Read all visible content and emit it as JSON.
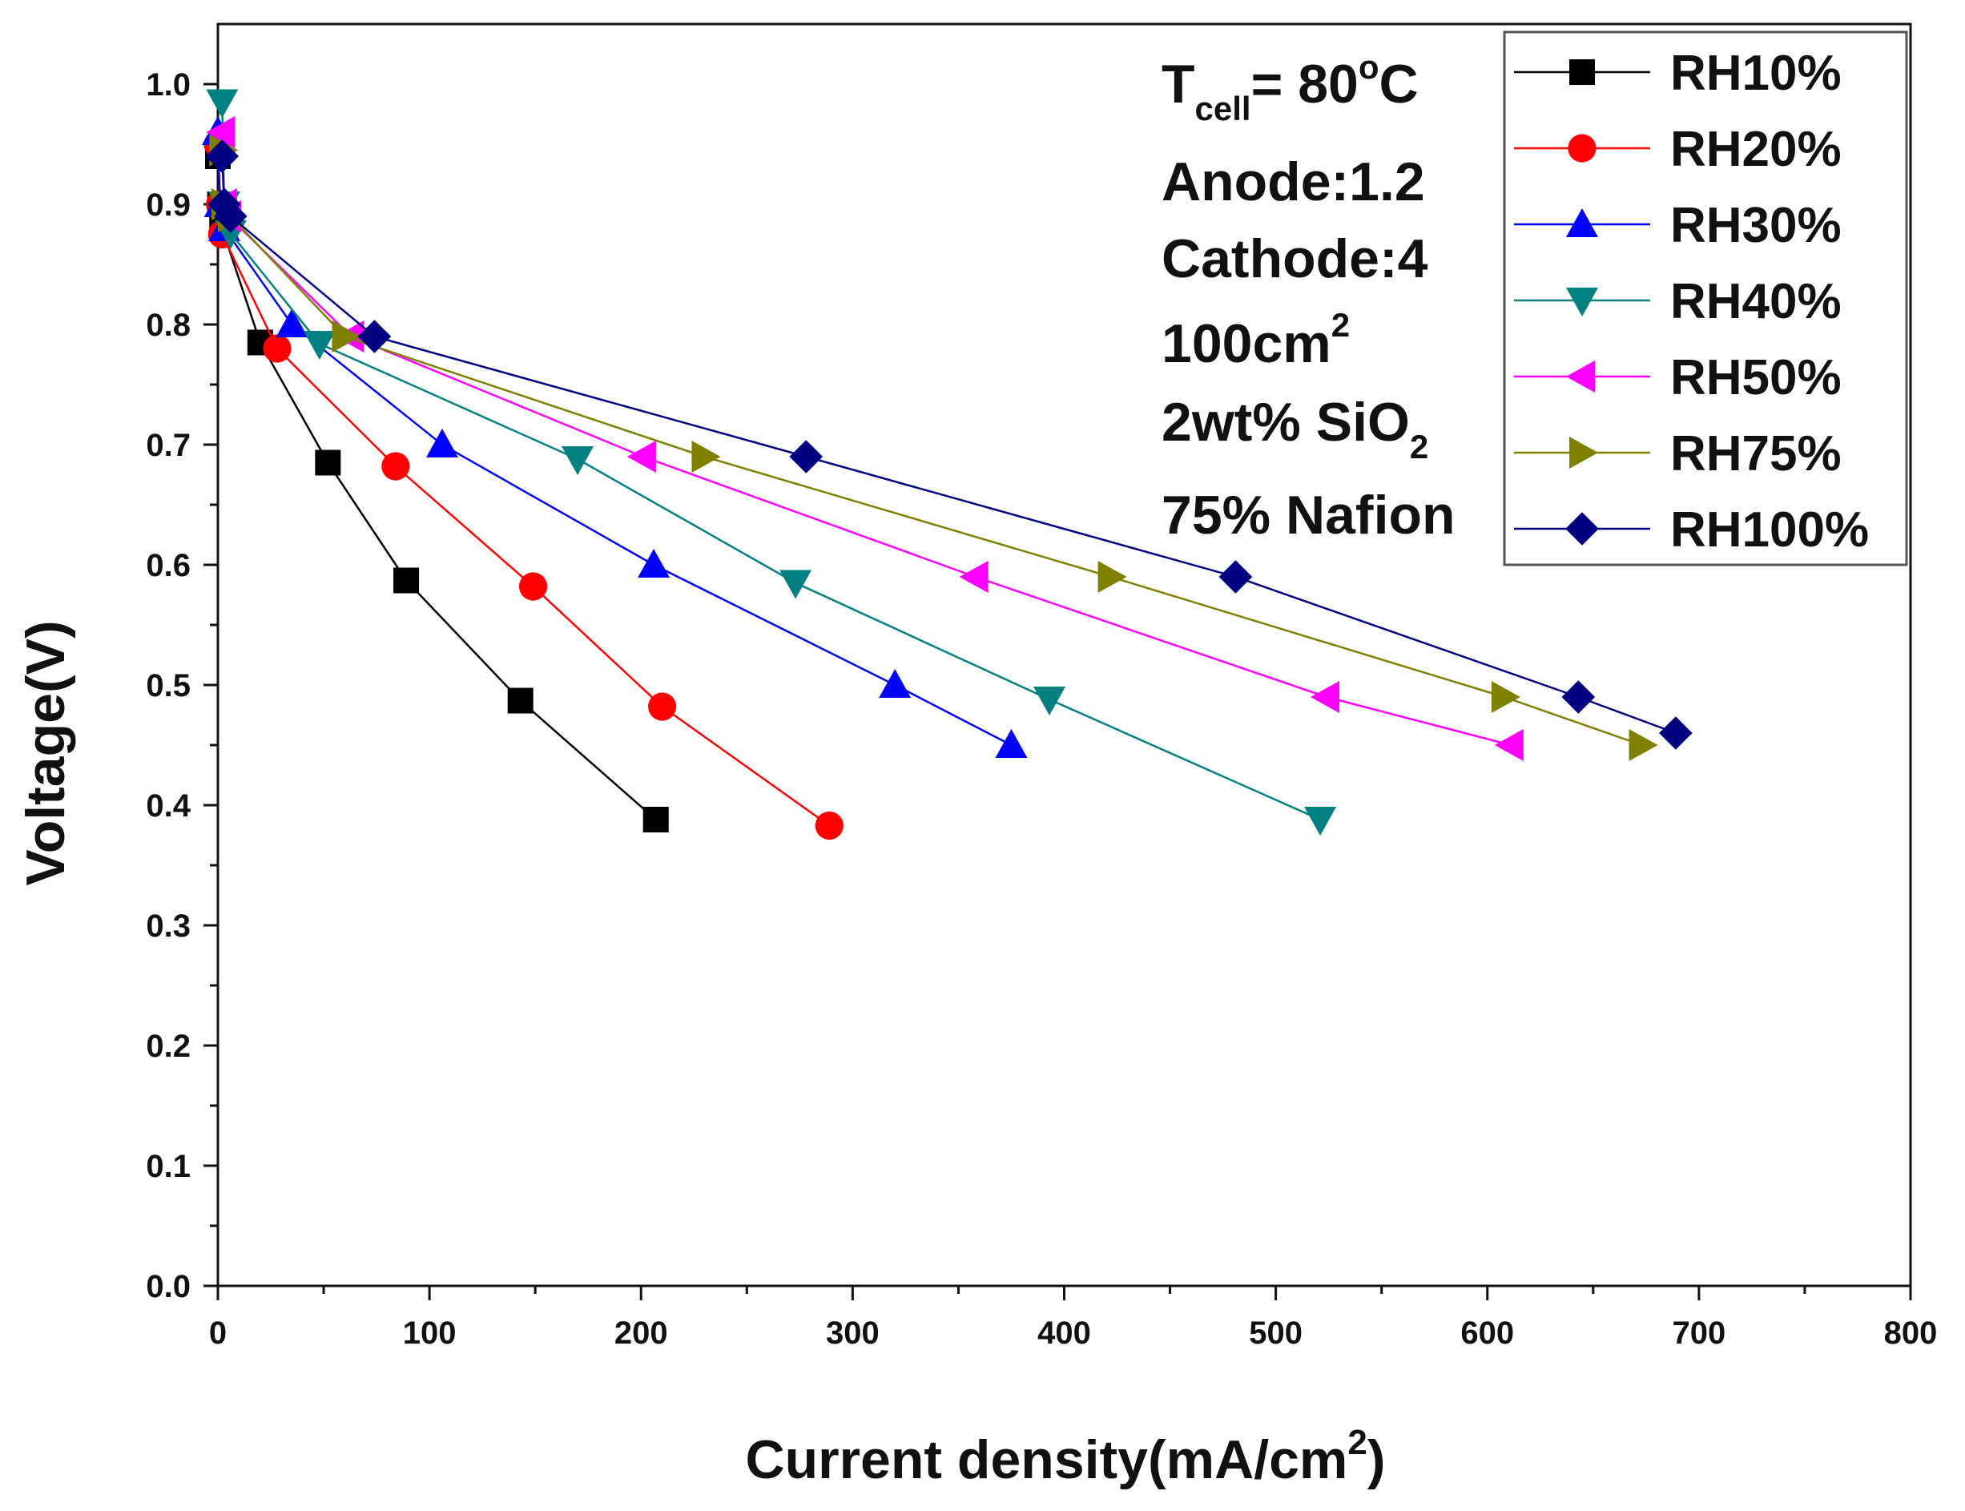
{
  "chart_data": {
    "type": "line",
    "xlabel": "Current density(mA/cm",
    "xlabel_sup": "2",
    "xlabel_close": ")",
    "ylabel": "Voltage(V)",
    "xlim": [
      0,
      800
    ],
    "ylim": [
      0,
      1.05
    ],
    "xticks": [
      "0",
      "100",
      "200",
      "300",
      "400",
      "500",
      "600",
      "700",
      "800"
    ],
    "yticks": [
      "0.0",
      "0.1",
      "0.2",
      "0.3",
      "0.4",
      "0.5",
      "0.6",
      "0.7",
      "0.8",
      "0.9",
      "1.0"
    ],
    "annotations": {
      "tcell": {
        "main": "T",
        "sub": "cell",
        "rest": "= 80",
        "sup": "o",
        "unit": "C"
      },
      "anode": "Anode:1.2",
      "cathode": "Cathode:4",
      "area": {
        "main": "100cm",
        "sup": "2"
      },
      "sio2": {
        "main": "2wt% SiO",
        "sub": "2"
      },
      "nafion": "75% Nafion"
    },
    "series": [
      {
        "name": "RH10%",
        "color": "#000000",
        "marker": "square",
        "x": [
          0,
          1,
          2,
          20,
          52,
          89,
          143,
          207
        ],
        "y": [
          0.94,
          0.9,
          0.88,
          0.785,
          0.685,
          0.587,
          0.487,
          0.388
        ]
      },
      {
        "name": "RH20%",
        "color": "#ff0000",
        "marker": "circle",
        "x": [
          0,
          1,
          2,
          28,
          84,
          149,
          210,
          289
        ],
        "y": [
          0.95,
          0.9,
          0.875,
          0.78,
          0.682,
          0.582,
          0.482,
          0.383
        ]
      },
      {
        "name": "RH30%",
        "color": "#0000ff",
        "marker": "triangle-up",
        "x": [
          0,
          1,
          3,
          35,
          106,
          206,
          320,
          375
        ],
        "y": [
          0.96,
          0.9,
          0.88,
          0.8,
          0.7,
          0.6,
          0.5,
          0.45
        ]
      },
      {
        "name": "RH40%",
        "color": "#008080",
        "marker": "triangle-down",
        "x": [
          2,
          3,
          6,
          48,
          170,
          273,
          393,
          521
        ],
        "y": [
          0.985,
          0.9,
          0.876,
          0.784,
          0.688,
          0.585,
          0.488,
          0.388
        ]
      },
      {
        "name": "RH50%",
        "color": "#ff00ff",
        "marker": "triangle-left",
        "x": [
          2,
          3,
          5,
          63,
          201,
          358,
          524,
          611
        ],
        "y": [
          0.96,
          0.9,
          0.89,
          0.79,
          0.69,
          0.59,
          0.49,
          0.45
        ]
      },
      {
        "name": "RH75%",
        "color": "#808000",
        "marker": "triangle-right",
        "x": [
          2,
          3,
          6,
          60,
          230,
          422,
          608,
          673
        ],
        "y": [
          0.945,
          0.9,
          0.89,
          0.79,
          0.69,
          0.59,
          0.49,
          0.45
        ]
      },
      {
        "name": "RH100%",
        "color": "#000080",
        "marker": "diamond",
        "x": [
          2,
          3,
          6,
          74,
          278,
          481,
          643,
          689
        ],
        "y": [
          0.94,
          0.9,
          0.89,
          0.79,
          0.69,
          0.59,
          0.49,
          0.46
        ]
      }
    ]
  }
}
